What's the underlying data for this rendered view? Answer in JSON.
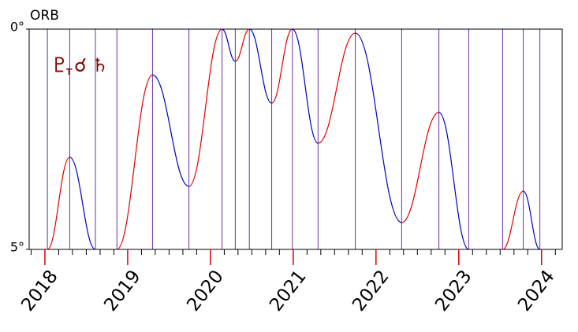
{
  "chart_data": {
    "type": "line",
    "title_parts": [
      "♇",
      "T",
      "☌",
      "♄"
    ],
    "title_color": "#800000",
    "ylabel": "ORB",
    "ylim": [
      0,
      5
    ],
    "yticks": [
      {
        "value": 0,
        "label": "0°"
      },
      {
        "value": 5,
        "label": "5°"
      }
    ],
    "y_inverted": true,
    "xlim": [
      2017.81,
      2024.25
    ],
    "xticks": [
      2018,
      2019,
      2020,
      2021,
      2022,
      2023,
      2024
    ],
    "xminorticks": [
      2017.833,
      2018.167,
      2018.333,
      2018.5,
      2018.667,
      2018.833,
      2019.167,
      2019.333,
      2019.5,
      2019.667,
      2019.833,
      2020.167,
      2020.333,
      2020.5,
      2020.667,
      2020.833,
      2021.167,
      2021.333,
      2021.5,
      2021.667,
      2021.833,
      2022.167,
      2022.333,
      2022.5,
      2022.667,
      2022.833,
      2023.167,
      2023.333,
      2023.5,
      2023.667,
      2023.833,
      2024.167
    ],
    "applying_color": "#e00000",
    "separating_color": "#0000c0",
    "event_line_color": "#7030a0",
    "x": [
      2018.03,
      2018.3,
      2018.61,
      null,
      2018.87,
      2019.3,
      2019.74,
      2020.14,
      2020.3,
      2020.47,
      2020.74,
      2020.99,
      2021.3,
      2021.75,
      2022.31,
      2022.76,
      2023.12,
      null,
      2023.53,
      2023.78,
      2023.98
    ],
    "y": [
      5,
      2.91,
      5,
      null,
      5,
      1.04,
      3.57,
      0,
      0.73,
      0,
      1.68,
      0,
      2.59,
      0.09,
      4.39,
      1.89,
      5,
      null,
      5,
      3.68,
      5
    ]
  }
}
